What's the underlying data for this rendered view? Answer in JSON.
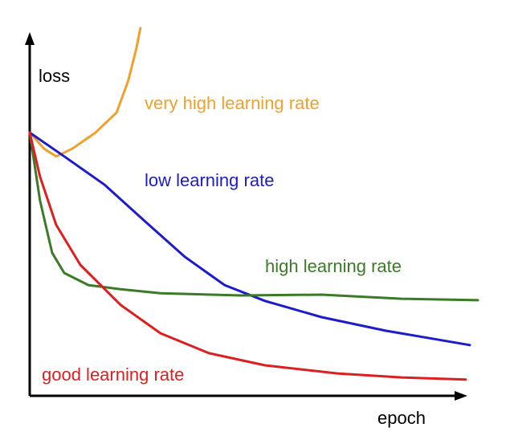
{
  "chart_data": {
    "type": "line",
    "xlabel": "epoch",
    "ylabel": "loss",
    "xlim": [
      0,
      100
    ],
    "ylim": [
      0,
      100
    ],
    "series": [
      {
        "name": "very high learning rate",
        "color": "#f0a02c",
        "x": [
          0,
          3.2,
          5.9,
          9.5,
          14.7,
          19.4,
          22.0,
          23.8,
          24.7
        ],
        "values": [
          71.6,
          67.2,
          65.1,
          67.2,
          71.6,
          77.1,
          85.8,
          94.5,
          100
        ]
      },
      {
        "name": "low learning rate",
        "color": "#1c1ccc",
        "x": [
          0,
          7.7,
          16.7,
          25.6,
          34.6,
          43.5,
          52.5,
          65.1,
          79.4,
          98.2
        ],
        "values": [
          71.6,
          65.1,
          57.4,
          47.6,
          37.8,
          30.1,
          25.8,
          21.4,
          17.7,
          13.8
        ]
      },
      {
        "name": "high learning rate",
        "color": "#3a7a28",
        "x": [
          0,
          2.3,
          5.0,
          7.7,
          13.1,
          20.3,
          29.2,
          47.1,
          65.1,
          83.0,
          100
        ],
        "values": [
          71.6,
          53.1,
          38.9,
          33.4,
          30.1,
          29.0,
          27.9,
          27.3,
          27.5,
          26.4,
          26.0
        ]
      },
      {
        "name": "good learning rate",
        "color": "#dd1f1f",
        "x": [
          0,
          2.3,
          5.9,
          11.3,
          20.3,
          29.2,
          40.0,
          52.5,
          68.6,
          83.0,
          97.3
        ],
        "values": [
          71.6,
          59.6,
          46.5,
          35.6,
          24.7,
          17.0,
          11.6,
          8.3,
          6.1,
          5.0,
          4.4
        ]
      }
    ]
  }
}
